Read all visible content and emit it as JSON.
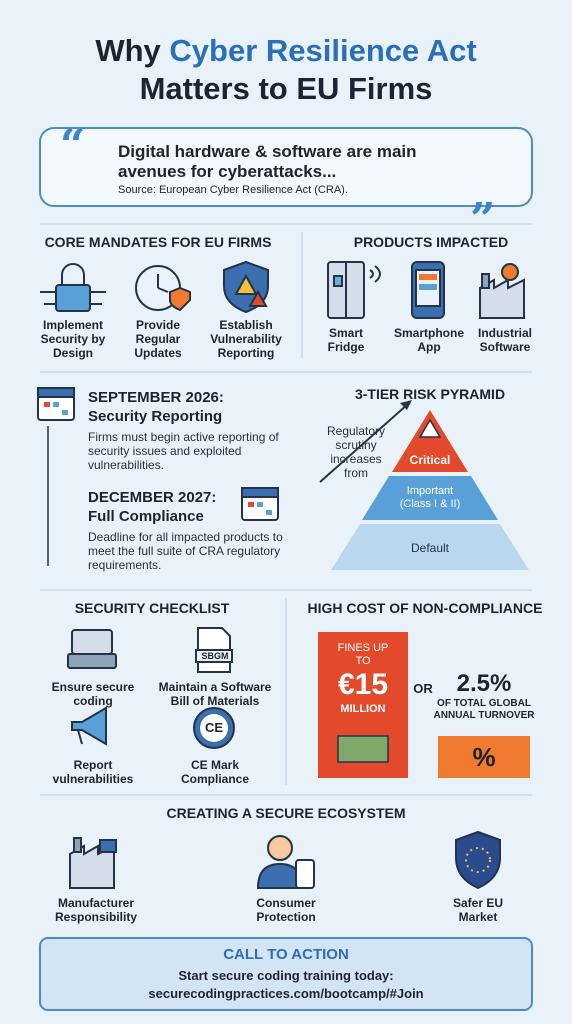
{
  "header": {
    "title_prefix": "Why",
    "title_highlight": "Cyber Resilience Act",
    "title_line2": "Matters to EU Firms"
  },
  "quote": {
    "text": "Digital hardware & software are main avenues for cyberattacks...",
    "source": "Source: European Cyber Resilience Act (CRA)."
  },
  "mandates": {
    "heading": "CORE MANDATES FOR EU FIRMS",
    "items": [
      "Implement Security by Design",
      "Provide Regular Updates",
      "Establish Vulnerability Reporting"
    ]
  },
  "products": {
    "heading": "PRODUCTS IMPACTED",
    "items": [
      "Smart Fridge",
      "Smartphone App",
      "Industrial Software"
    ]
  },
  "timeline": [
    {
      "date": "SEPTEMBER 2026:",
      "title": "Security Reporting",
      "text": "Firms must begin active reporting of security issues and exploited vulnerabilities."
    },
    {
      "date": "DECEMBER 2027:",
      "title": "Full Compliance",
      "text": "Deadline for all impacted products to meet the full suite of CRA regulatory requirements."
    }
  ],
  "pyramid": {
    "heading": "3-TIER RISK PYRAMID",
    "arrow_label": "Regulatory scrutiny increases from",
    "tiers": [
      "Critical",
      "Important (Class I & II)",
      "Default"
    ]
  },
  "checklist": {
    "heading": "SECURITY CHECKLIST",
    "items": [
      "Ensure secure coding",
      "Maintain a Software Bill of Materials",
      "Report vulnerabilities",
      "CE Mark Compliance"
    ],
    "sbom_icon": "SBGM",
    "ce_icon": "CE"
  },
  "cost": {
    "heading": "HIGH COST OF NON-COMPLIANCE",
    "fine_top": "FINES UP TO",
    "fine_amount": "€15",
    "fine_unit": "MILLION",
    "or": "OR",
    "percent": "2.5%",
    "percent_text": "OF TOTAL GLOBAL ANNUAL TURNOVER",
    "percent_icon": "%"
  },
  "ecosystem": {
    "heading": "CREATING A SECURE ECOSYSTEM",
    "items": [
      "Manufacturer Responsibility",
      "Consumer Protection",
      "Safer EU Market"
    ]
  },
  "cta": {
    "heading": "CALL TO ACTION",
    "text": "Start secure coding training today:",
    "link": "securecodingpractices.com/bootcamp/#Join"
  }
}
